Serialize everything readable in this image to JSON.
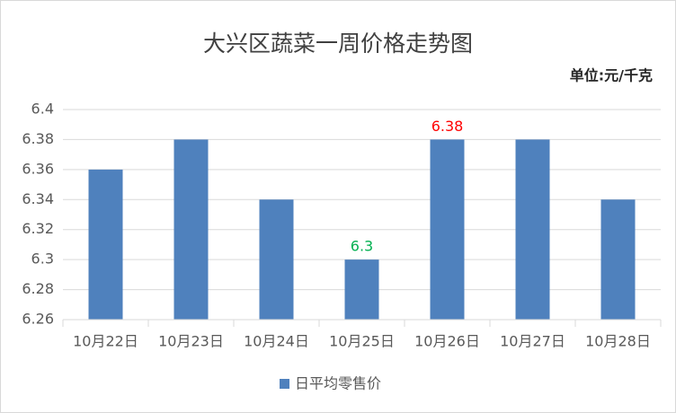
{
  "chart_data": {
    "type": "bar",
    "title": "大兴区蔬菜一周价格走势图",
    "unit": "单位:元/千克",
    "categories": [
      "10月22日",
      "10月23日",
      "10月24日",
      "10月25日",
      "10月26日",
      "10月27日",
      "10月28日"
    ],
    "series": [
      {
        "name": "日平均零售价",
        "color": "#4f81bd",
        "values": [
          6.36,
          6.38,
          6.34,
          6.3,
          6.38,
          6.38,
          6.34
        ],
        "label_colors": [
          null,
          null,
          null,
          "#00b050",
          "#ff0000",
          null,
          null
        ]
      }
    ],
    "ylim": [
      6.26,
      6.4
    ],
    "yticks": [
      6.26,
      6.28,
      6.3,
      6.32,
      6.34,
      6.36,
      6.38,
      6.4
    ],
    "grid": true,
    "legend": "bottom"
  }
}
